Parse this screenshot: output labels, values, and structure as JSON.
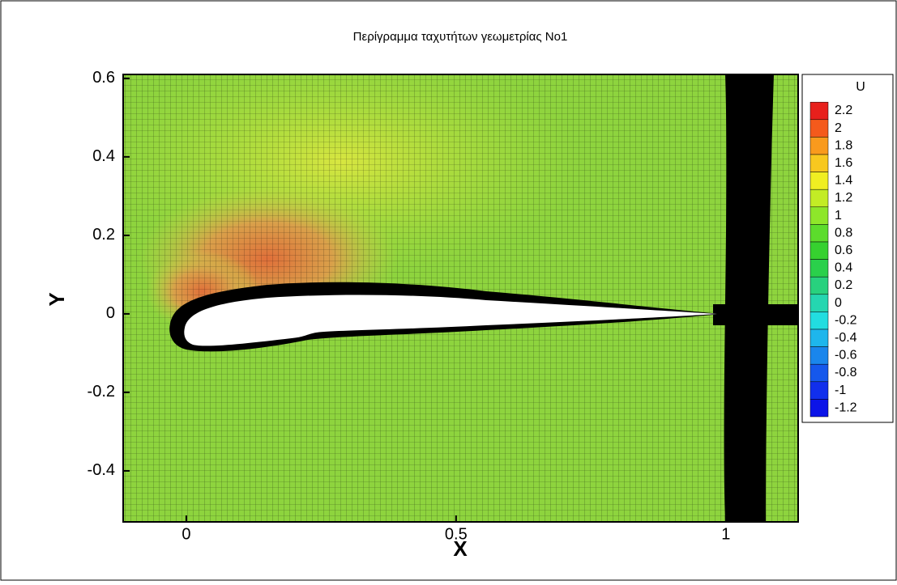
{
  "chart_data": {
    "type": "contour",
    "title": "Περίγραμμα ταχυτήτων γεωμετρίας Νο1",
    "xlabel": "X",
    "ylabel": "Y",
    "xlim": [
      -0.117,
      1.134
    ],
    "ylim": [
      -0.53,
      0.61
    ],
    "xticks": [
      0,
      0.5,
      1
    ],
    "yticks": [
      -0.4,
      -0.2,
      0,
      0.2,
      0.4,
      0.6
    ],
    "colorbar": {
      "title": "U",
      "levels": [
        2.2,
        2,
        1.8,
        1.6,
        1.4,
        1.2,
        1,
        0.8,
        0.6,
        0.4,
        0.2,
        0,
        -0.2,
        -0.4,
        -0.6,
        -0.8,
        -1,
        -1.2
      ],
      "colors": [
        "#e8201c",
        "#f45a1c",
        "#f99a1d",
        "#f8c81f",
        "#f0ee22",
        "#c3ec25",
        "#8ee62a",
        "#5cdc2c",
        "#36d12f",
        "#2ad04b",
        "#28d17e",
        "#25d6b0",
        "#22dde0",
        "#1eb6ec",
        "#1a86ec",
        "#1558ec",
        "#112fec",
        "#0c14e8"
      ]
    }
  }
}
